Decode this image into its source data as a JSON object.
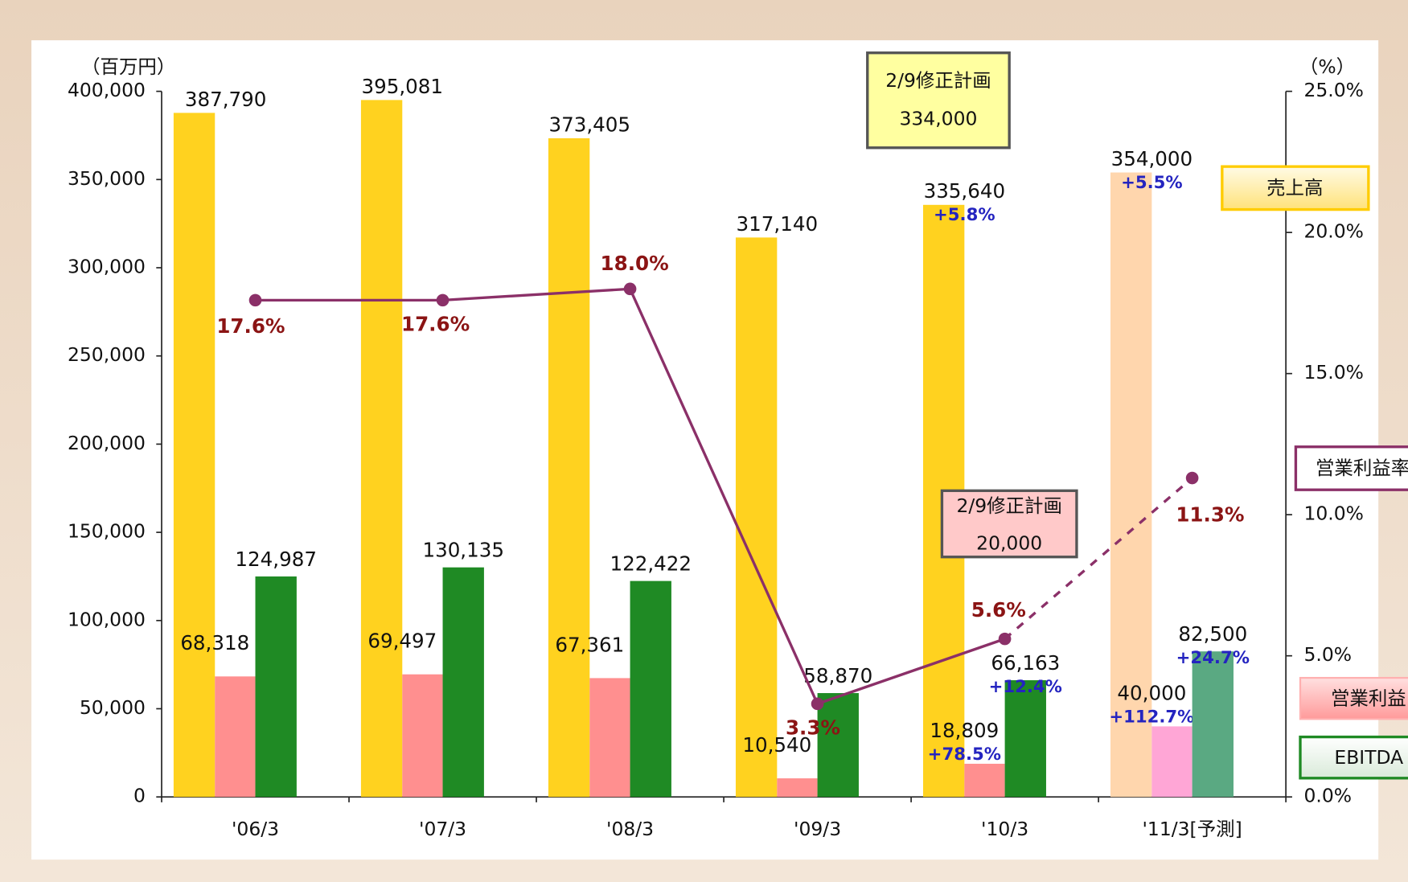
{
  "chart_data": {
    "type": "bar",
    "y_axis_label": "（百万円）",
    "y2_axis_label": "（%）",
    "categories": [
      "'06/3",
      "'07/3",
      "'08/3",
      "'09/3",
      "'10/3",
      "'11/3[予測]"
    ],
    "ylim": [
      0,
      400000
    ],
    "yticks": [
      {
        "value": 0,
        "label": "0"
      },
      {
        "value": 50000,
        "label": "50,000"
      },
      {
        "value": 100000,
        "label": "100,000"
      },
      {
        "value": 150000,
        "label": "150,000"
      },
      {
        "value": 200000,
        "label": "200,000"
      },
      {
        "value": 250000,
        "label": "250,000"
      },
      {
        "value": 300000,
        "label": "300,000"
      },
      {
        "value": 350000,
        "label": "350,000"
      },
      {
        "value": 400000,
        "label": "400,000"
      }
    ],
    "y2lim": [
      0,
      25
    ],
    "y2ticks": [
      {
        "value": 0,
        "label": "0.0%"
      },
      {
        "value": 5,
        "label": "5.0%"
      },
      {
        "value": 10,
        "label": "10.0%"
      },
      {
        "value": 15,
        "label": "15.0%"
      },
      {
        "value": 20,
        "label": "20.0%"
      },
      {
        "value": 25,
        "label": "25.0%"
      }
    ],
    "series": [
      {
        "name": "売上高",
        "type": "bar",
        "colors": [
          "#ffd21f",
          "#ffd21f",
          "#ffd21f",
          "#ffd21f",
          "#ffd21f",
          "#ffd6ad"
        ],
        "values": [
          387790,
          395081,
          373405,
          317140,
          335640,
          354000
        ],
        "value_labels": [
          "387,790",
          "395,081",
          "373,405",
          "317,140",
          "335,640",
          "354,000"
        ],
        "growth_labels": [
          null,
          null,
          null,
          null,
          "+5.8%",
          "+5.5%"
        ]
      },
      {
        "name": "営業利益",
        "type": "bar",
        "colors": [
          "#ff8f8f",
          "#ff8f8f",
          "#ff8f8f",
          "#ff8f8f",
          "#ff8f8f",
          "#ffa6d6"
        ],
        "values": [
          68318,
          69497,
          67361,
          10540,
          18809,
          40000
        ],
        "value_labels": [
          "68,318",
          "69,497",
          "67,361",
          "10,540",
          "18,809",
          "40,000"
        ],
        "growth_labels": [
          null,
          null,
          null,
          null,
          "+78.5%",
          "+112.7%"
        ]
      },
      {
        "name": "EBITDA",
        "type": "bar",
        "colors": [
          "#1f8a24",
          "#1f8a24",
          "#1f8a24",
          "#1f8a24",
          "#1f8a24",
          "#5aa982"
        ],
        "values": [
          124987,
          130135,
          122422,
          58870,
          66163,
          82500
        ],
        "value_labels": [
          "124,987",
          "130,135",
          "122,422",
          "58,870",
          "66,163",
          "82,500"
        ],
        "growth_labels": [
          null,
          null,
          null,
          null,
          "+12.4%",
          "+24.7%"
        ]
      },
      {
        "name": "営業利益率",
        "type": "line",
        "axis": "y2",
        "color": "#8b3068",
        "forecast_dashed": true,
        "values": [
          17.6,
          17.6,
          18.0,
          3.3,
          5.6,
          11.3
        ],
        "value_labels": [
          "17.6%",
          "17.6%",
          "18.0%",
          "3.3%",
          "5.6%",
          "11.3%"
        ]
      }
    ],
    "annotations": [
      {
        "text": "2/9修正計画",
        "value_label": "334,000",
        "value": 334000
      },
      {
        "text": "2/9修正計画",
        "value_label": "20,000",
        "value": 20000
      }
    ]
  }
}
